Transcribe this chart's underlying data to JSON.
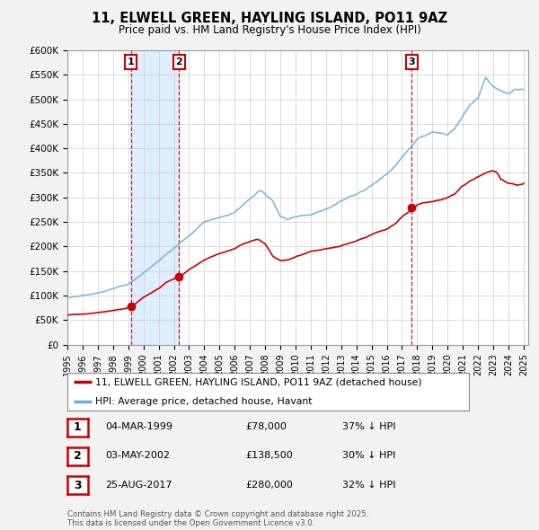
{
  "title": "11, ELWELL GREEN, HAYLING ISLAND, PO11 9AZ",
  "subtitle": "Price paid vs. HM Land Registry's House Price Index (HPI)",
  "hpi_color": "#6baed6",
  "price_color": "#cc0000",
  "background_color": "#f2f2f2",
  "plot_bg_color": "#ffffff",
  "shade_color": "#ddeeff",
  "ylim": [
    0,
    600000
  ],
  "yticks": [
    0,
    50000,
    100000,
    150000,
    200000,
    250000,
    300000,
    350000,
    400000,
    450000,
    500000,
    550000,
    600000
  ],
  "ytick_labels": [
    "£0",
    "£50K",
    "£100K",
    "£150K",
    "£200K",
    "£250K",
    "£300K",
    "£350K",
    "£400K",
    "£450K",
    "£500K",
    "£550K",
    "£600K"
  ],
  "trans_dates": [
    1999.17,
    2002.34,
    2017.65
  ],
  "trans_prices": [
    78000,
    138500,
    280000
  ],
  "trans_labels": [
    "1",
    "2",
    "3"
  ],
  "vline_color": "#cc0000",
  "legend_entries": [
    "11, ELWELL GREEN, HAYLING ISLAND, PO11 9AZ (detached house)",
    "HPI: Average price, detached house, Havant"
  ],
  "table_data": [
    {
      "num": "1",
      "date": "04-MAR-1999",
      "price": "£78,000",
      "hpi": "37% ↓ HPI"
    },
    {
      "num": "2",
      "date": "03-MAY-2002",
      "price": "£138,500",
      "hpi": "30% ↓ HPI"
    },
    {
      "num": "3",
      "date": "25-AUG-2017",
      "price": "£280,000",
      "hpi": "32% ↓ HPI"
    }
  ],
  "footnote": "Contains HM Land Registry data © Crown copyright and database right 2025.\nThis data is licensed under the Open Government Licence v3.0."
}
